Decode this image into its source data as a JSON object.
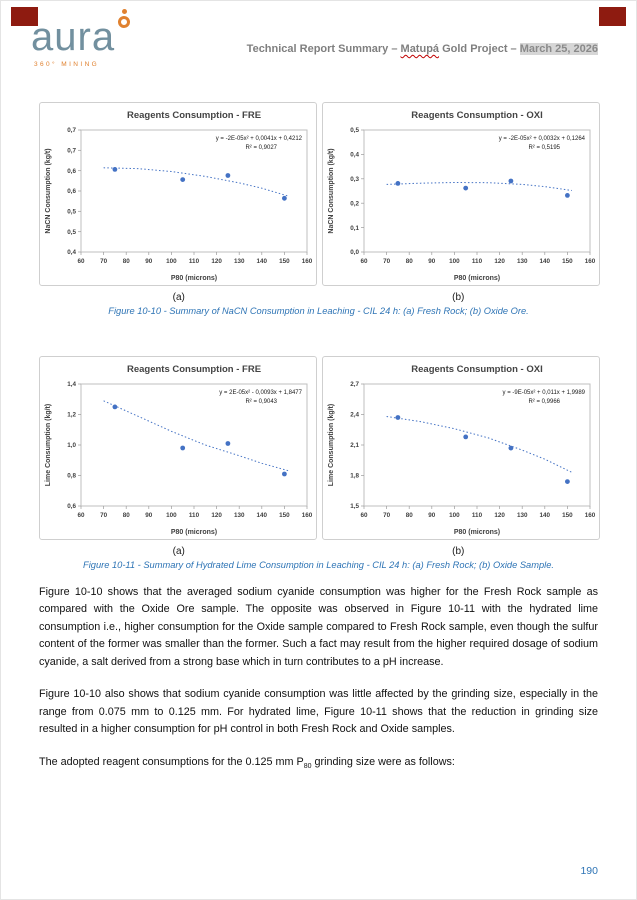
{
  "header": {
    "logo_text": "aura",
    "logo_subtext": "360° MINING",
    "title_part1": "Technical Report Summary – ",
    "title_part2": "Matupá",
    "title_part3": " Gold Project – ",
    "title_part4": "March 25, 2026"
  },
  "figures": {
    "fig10_10": {
      "label_a": "(a)",
      "label_b": "(b)",
      "caption": "Figure 10-10 - Summary of NaCN Consumption in Leaching - CIL 24 h: (a) Fresh Rock; (b) Oxide Ore."
    },
    "fig10_11": {
      "label_a": "(a)",
      "label_b": "(b)",
      "caption": "Figure 10-11 - Summary of Hydrated Lime Consumption in Leaching - CIL 24 h: (a) Fresh Rock; (b) Oxide Sample."
    }
  },
  "paragraphs": {
    "p1": "Figure 10-10 shows that the averaged sodium cyanide consumption was higher for the Fresh Rock sample as compared with the Oxide Ore sample. The opposite was observed in Figure 10-11 with the hydrated lime consumption i.e., higher consumption for the Oxide sample compared to Fresh Rock sample, even though the sulfur content of the former was smaller than the former. Such a fact may result from the higher required dosage of sodium cyanide, a salt derived from a strong base which in turn contributes to a pH increase.",
    "p2": "Figure 10-10 also shows that sodium cyanide consumption was little affected by the grinding size, especially in the range from 0.075 mm to 0.125 mm. For hydrated lime, Figure 10-11 shows that the reduction in grinding size resulted in a higher consumption for pH control in both Fresh Rock and Oxide samples.",
    "p3_before_sub": "The adopted reagent consumptions for the 0.125 mm P",
    "p3_sub": "80",
    "p3_after_sub": " grinding size were as follows:"
  },
  "page_number": "190",
  "colors": {
    "accent_blue": "#4472c4",
    "caption_blue": "#2e74b5",
    "corner_red": "#8e1b10",
    "logo_blue": "#72909f",
    "logo_orange": "#e0812f"
  },
  "chart_data": [
    {
      "type": "scatter",
      "title": "Reagents Consumption - FRE",
      "xlabel": "P80 (microns)",
      "ylabel": "NaCN Consumption (kg/t)",
      "equation": "y = -2E-05x² + 0,0041x + 0,4212",
      "r2": "R² = 0,9027",
      "xlim": [
        60,
        160
      ],
      "x_ticks": [
        60,
        70,
        80,
        90,
        100,
        110,
        120,
        130,
        140,
        150,
        160
      ],
      "ylim": [
        0.4,
        0.7
      ],
      "y_tick_values": [
        0.4,
        0.45,
        0.5,
        0.55,
        0.6,
        0.65,
        0.7
      ],
      "y_tick_labels": [
        "0,4",
        "0,5",
        "0,5",
        "0,6",
        "0,6",
        "0,7",
        "0,7"
      ],
      "points": [
        [
          75,
          0.603
        ],
        [
          105,
          0.578
        ],
        [
          125,
          0.588
        ],
        [
          150,
          0.532
        ]
      ],
      "trend": [
        [
          70,
          0.607
        ],
        [
          85,
          0.605
        ],
        [
          100,
          0.598
        ],
        [
          115,
          0.586
        ],
        [
          130,
          0.57
        ],
        [
          140,
          0.557
        ],
        [
          152,
          0.537
        ]
      ],
      "marker_color": "#4472c4",
      "line_color": "#4472c4"
    },
    {
      "type": "scatter",
      "title": "Reagents Consumption - OXI",
      "xlabel": "P80 (microns)",
      "ylabel": "NaCN Consumption (kg/t)",
      "equation": "y = -2E-05x² + 0,0032x + 0,1264",
      "r2": "R² = 0,5195",
      "xlim": [
        60,
        160
      ],
      "x_ticks": [
        60,
        70,
        80,
        90,
        100,
        110,
        120,
        130,
        140,
        150,
        160
      ],
      "ylim": [
        0.0,
        0.5
      ],
      "y_tick_values": [
        0.0,
        0.1,
        0.2,
        0.3,
        0.4,
        0.5
      ],
      "y_tick_labels": [
        "0,0",
        "0,1",
        "0,2",
        "0,3",
        "0,4",
        "0,5"
      ],
      "points": [
        [
          75,
          0.281
        ],
        [
          105,
          0.262
        ],
        [
          125,
          0.291
        ],
        [
          150,
          0.232
        ]
      ],
      "trend": [
        [
          70,
          0.277
        ],
        [
          85,
          0.282
        ],
        [
          100,
          0.285
        ],
        [
          115,
          0.284
        ],
        [
          130,
          0.277
        ],
        [
          140,
          0.268
        ],
        [
          152,
          0.252
        ]
      ],
      "marker_color": "#4472c4",
      "line_color": "#4472c4"
    },
    {
      "type": "scatter",
      "title": "Reagents Consumption - FRE",
      "xlabel": "P80 (microns)",
      "ylabel": "Lime Consumption (kg/t)",
      "equation": "y = 2E-05x² - 0,0093x + 1,8477",
      "r2": "R² = 0,9043",
      "xlim": [
        60,
        160
      ],
      "x_ticks": [
        60,
        70,
        80,
        90,
        100,
        110,
        120,
        130,
        140,
        150,
        160
      ],
      "ylim": [
        0.6,
        1.4
      ],
      "y_tick_values": [
        0.6,
        0.8,
        1.0,
        1.2,
        1.4
      ],
      "y_tick_labels": [
        "0,6",
        "0,8",
        "1,0",
        "1,2",
        "1,4"
      ],
      "points": [
        [
          75,
          1.25
        ],
        [
          105,
          0.98
        ],
        [
          125,
          1.01
        ],
        [
          150,
          0.81
        ]
      ],
      "trend": [
        [
          70,
          1.29
        ],
        [
          85,
          1.19
        ],
        [
          100,
          1.09
        ],
        [
          115,
          1.0
        ],
        [
          130,
          0.93
        ],
        [
          140,
          0.88
        ],
        [
          152,
          0.83
        ]
      ],
      "marker_color": "#4472c4",
      "line_color": "#4472c4"
    },
    {
      "type": "scatter",
      "title": "Reagents Consumption - OXI",
      "xlabel": "P80 (microns)",
      "ylabel": "Lime Consumption (kg/t)",
      "equation": "y = -9E-05x² + 0,011x + 1,9989",
      "r2": "R² = 0,9966",
      "xlim": [
        60,
        160
      ],
      "x_ticks": [
        60,
        70,
        80,
        90,
        100,
        110,
        120,
        130,
        140,
        150,
        160
      ],
      "ylim": [
        1.5,
        2.7
      ],
      "y_tick_values": [
        1.5,
        1.8,
        2.1,
        2.4,
        2.7
      ],
      "y_tick_labels": [
        "1,5",
        "1,8",
        "2,1",
        "2,4",
        "2,7"
      ],
      "points": [
        [
          75,
          2.37
        ],
        [
          105,
          2.18
        ],
        [
          125,
          2.07
        ],
        [
          150,
          1.74
        ]
      ],
      "trend": [
        [
          70,
          2.38
        ],
        [
          85,
          2.33
        ],
        [
          100,
          2.26
        ],
        [
          115,
          2.17
        ],
        [
          130,
          2.05
        ],
        [
          140,
          1.96
        ],
        [
          152,
          1.83
        ]
      ],
      "marker_color": "#4472c4",
      "line_color": "#4472c4"
    }
  ]
}
